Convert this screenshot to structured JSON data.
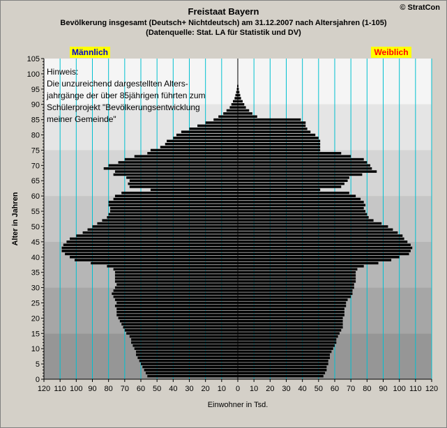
{
  "header": {
    "title": "Freistaat Bayern",
    "subtitle": "Bevölkerung  insgesamt (Deutsch+ Nichtdeutsch) am 31.12.2007 nach Altersjahren (1-105)",
    "source": "(Datenquelle: Stat. LA für Statistik und DV)",
    "brand": "© StratCon"
  },
  "colors": {
    "bar": "#000000",
    "grid": "#00c0d0",
    "label_bg": "#ffff00",
    "male_text": "#0000cc",
    "female_text": "#ff0000"
  },
  "chart_data": {
    "type": "bar",
    "orientation": "horizontal",
    "ylabel": "Alter in Jahren",
    "xlabel": "Einwohner in Tsd.",
    "male_label": "Männlich",
    "female_label": "Weiblich",
    "note_lines": [
      "Hinweis:",
      "Die unzureichend dargestellten Alters-",
      "jahrgänge der über 85jährigen führten zum",
      "Schülerprojekt \"Bevölkerungsentwicklung",
      "meiner Gemeinde\""
    ],
    "xlim": [
      -120,
      120
    ],
    "ylim": [
      0,
      105
    ],
    "x_ticks": [
      120,
      110,
      100,
      90,
      80,
      70,
      60,
      50,
      40,
      30,
      20,
      10,
      0,
      10,
      20,
      30,
      40,
      50,
      60,
      70,
      80,
      90,
      100,
      110,
      120
    ],
    "y_ticks": [
      0,
      5,
      10,
      15,
      20,
      25,
      30,
      35,
      40,
      45,
      50,
      55,
      60,
      65,
      70,
      75,
      80,
      85,
      90,
      95,
      100,
      105
    ],
    "ages": [
      1,
      2,
      3,
      4,
      5,
      6,
      7,
      8,
      9,
      10,
      11,
      12,
      13,
      14,
      15,
      16,
      17,
      18,
      19,
      20,
      21,
      22,
      23,
      24,
      25,
      26,
      27,
      28,
      29,
      30,
      31,
      32,
      33,
      34,
      35,
      36,
      37,
      38,
      39,
      40,
      41,
      42,
      43,
      44,
      45,
      46,
      47,
      48,
      49,
      50,
      51,
      52,
      53,
      54,
      55,
      56,
      57,
      58,
      59,
      60,
      61,
      62,
      63,
      64,
      65,
      66,
      67,
      68,
      69,
      70,
      71,
      72,
      73,
      74,
      75,
      76,
      77,
      78,
      79,
      80,
      81,
      82,
      83,
      84,
      85,
      86,
      87,
      88,
      89,
      90,
      91,
      92,
      93,
      94,
      95,
      96,
      97,
      98
    ],
    "series": [
      {
        "name": "Männlich",
        "values": [
          56,
          57,
          58,
          59,
          60,
          61,
          62,
          63,
          63,
          64,
          65,
          66,
          66,
          67,
          69,
          70,
          71,
          72,
          73,
          74,
          75,
          75,
          75,
          76,
          75,
          76,
          77,
          78,
          77,
          76,
          75,
          76,
          76,
          76,
          76,
          77,
          81,
          91,
          101,
          104,
          107,
          109,
          109,
          108,
          106,
          104,
          100,
          96,
          93,
          90,
          87,
          84,
          81,
          80,
          79,
          79,
          80,
          80,
          77,
          76,
          72,
          54,
          67,
          68,
          67,
          69,
          77,
          76,
          83,
          80,
          74,
          70,
          64,
          56,
          54,
          48,
          45,
          44,
          40,
          38,
          35,
          30,
          25,
          20,
          15,
          12,
          9,
          7,
          5,
          4,
          3,
          2,
          1.5,
          1,
          0.6,
          0.4,
          0.2,
          0.1
        ]
      },
      {
        "name": "Weiblich",
        "values": [
          53,
          54,
          55,
          55,
          56,
          56,
          57,
          57,
          58,
          59,
          60,
          61,
          61,
          62,
          63,
          64,
          65,
          65,
          65,
          65,
          66,
          66,
          66,
          67,
          67,
          68,
          70,
          71,
          71,
          72,
          72,
          73,
          73,
          73,
          73,
          74,
          78,
          87,
          95,
          100,
          106,
          107,
          108,
          107,
          105,
          103,
          102,
          99,
          96,
          93,
          89,
          84,
          81,
          80,
          79,
          78,
          79,
          78,
          76,
          73,
          69,
          51,
          64,
          66,
          68,
          69,
          77,
          86,
          83,
          82,
          80,
          78,
          70,
          64,
          51,
          51,
          51,
          51,
          50,
          48,
          45,
          43,
          42,
          42,
          39,
          12,
          9,
          7,
          5,
          4,
          3,
          2,
          1.5,
          1,
          0.6,
          0.4,
          0.2,
          0.1
        ]
      }
    ]
  }
}
